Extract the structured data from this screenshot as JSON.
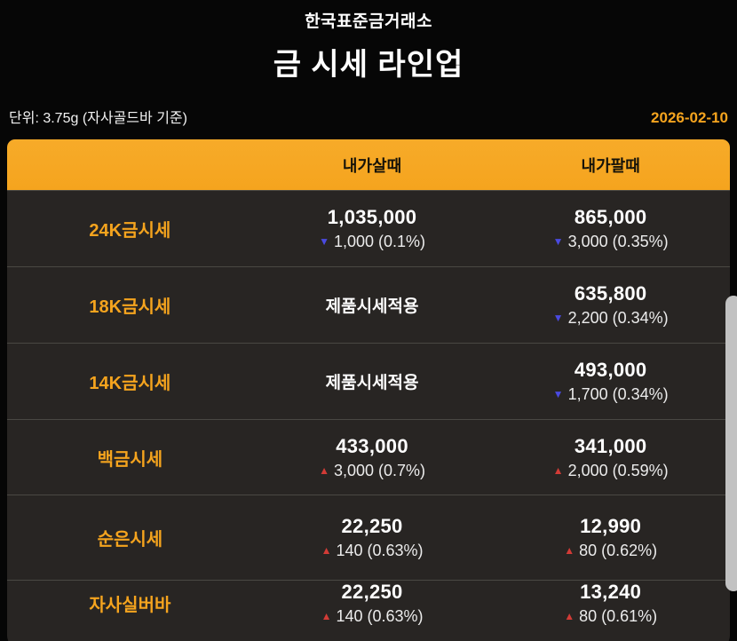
{
  "page": {
    "subtitle": "한국표준금거래소",
    "title": "금 시세 라인업",
    "unit_label": "단위: 3.75g (자사골드바 기준)",
    "date": "2026-02-10"
  },
  "colors": {
    "accent": "#f5a41e",
    "up": "#d23b36",
    "down": "#4a4ae0",
    "card_bg": "#282523",
    "page_bg": "#060606"
  },
  "table": {
    "columns": {
      "buy": "내가살때",
      "sell": "내가팔때"
    },
    "rows": [
      {
        "label": "24K금시세",
        "buy": {
          "price": "1,035,000",
          "arrow": "▼",
          "direction": "down",
          "change": "1,000 (0.1%)"
        },
        "sell": {
          "price": "865,000",
          "arrow": "▼",
          "direction": "down",
          "change": "3,000 (0.35%)"
        }
      },
      {
        "label": "18K금시세",
        "buy": {
          "text": "제품시세적용"
        },
        "sell": {
          "price": "635,800",
          "arrow": "▼",
          "direction": "down",
          "change": "2,200 (0.34%)"
        }
      },
      {
        "label": "14K금시세",
        "buy": {
          "text": "제품시세적용"
        },
        "sell": {
          "price": "493,000",
          "arrow": "▼",
          "direction": "down",
          "change": "1,700 (0.34%)"
        }
      },
      {
        "label": "백금시세",
        "buy": {
          "price": "433,000",
          "arrow": "▲",
          "direction": "up",
          "change": "3,000 (0.7%)"
        },
        "sell": {
          "price": "341,000",
          "arrow": "▲",
          "direction": "up",
          "change": "2,000 (0.59%)"
        }
      },
      {
        "label": "순은시세",
        "buy": {
          "price": "22,250",
          "arrow": "▲",
          "direction": "up",
          "change": "140 (0.63%)"
        },
        "sell": {
          "price": "12,990",
          "arrow": "▲",
          "direction": "up",
          "change": "80 (0.62%)"
        }
      },
      {
        "label": "자사실버바",
        "buy": {
          "price": "22,250",
          "arrow": "▲",
          "direction": "up",
          "change": "140 (0.63%)"
        },
        "sell": {
          "price": "13,240",
          "arrow": "▲",
          "direction": "up",
          "change": "80 (0.61%)"
        }
      }
    ]
  }
}
